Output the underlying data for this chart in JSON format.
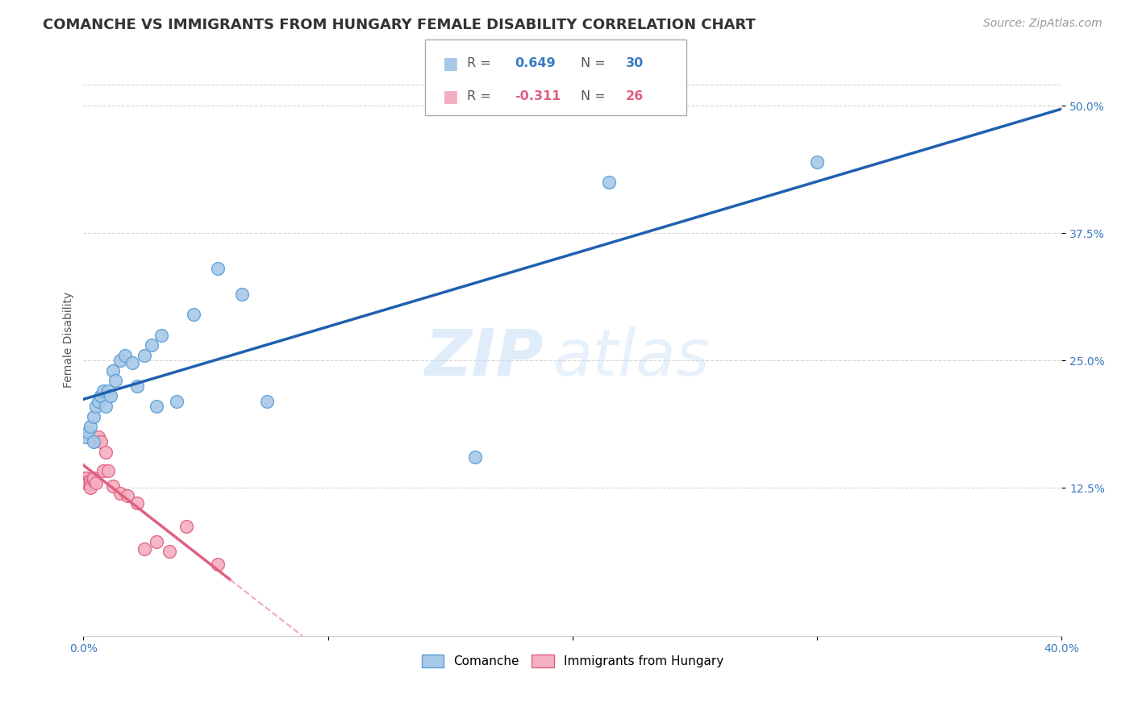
{
  "title": "COMANCHE VS IMMIGRANTS FROM HUNGARY FEMALE DISABILITY CORRELATION CHART",
  "source": "Source: ZipAtlas.com",
  "ylabel": "Female Disability",
  "y_tick_labels": [
    "12.5%",
    "25.0%",
    "37.5%",
    "50.0%"
  ],
  "y_tick_values": [
    0.125,
    0.25,
    0.375,
    0.5
  ],
  "xlim": [
    0.0,
    0.4
  ],
  "ylim": [
    -0.02,
    0.56
  ],
  "comanche_R": 0.649,
  "comanche_N": 30,
  "hungary_R": -0.311,
  "hungary_N": 26,
  "comanche_x": [
    0.001,
    0.002,
    0.003,
    0.004,
    0.004,
    0.005,
    0.006,
    0.007,
    0.008,
    0.009,
    0.01,
    0.011,
    0.012,
    0.013,
    0.015,
    0.017,
    0.02,
    0.022,
    0.025,
    0.028,
    0.03,
    0.032,
    0.038,
    0.045,
    0.055,
    0.065,
    0.075,
    0.16,
    0.215,
    0.3
  ],
  "comanche_y": [
    0.175,
    0.18,
    0.185,
    0.17,
    0.195,
    0.205,
    0.21,
    0.215,
    0.22,
    0.205,
    0.22,
    0.215,
    0.24,
    0.23,
    0.25,
    0.255,
    0.248,
    0.225,
    0.255,
    0.265,
    0.205,
    0.275,
    0.21,
    0.295,
    0.34,
    0.315,
    0.21,
    0.155,
    0.425,
    0.445
  ],
  "hungary_x": [
    0.001,
    0.001,
    0.001,
    0.002,
    0.002,
    0.003,
    0.003,
    0.003,
    0.004,
    0.004,
    0.005,
    0.005,
    0.006,
    0.007,
    0.008,
    0.009,
    0.01,
    0.012,
    0.015,
    0.018,
    0.022,
    0.025,
    0.03,
    0.035,
    0.042,
    0.055
  ],
  "hungary_y": [
    0.135,
    0.135,
    0.13,
    0.13,
    0.13,
    0.132,
    0.128,
    0.125,
    0.132,
    0.135,
    0.13,
    0.172,
    0.175,
    0.17,
    0.142,
    0.16,
    0.142,
    0.127,
    0.12,
    0.117,
    0.11,
    0.065,
    0.072,
    0.063,
    0.087,
    0.05
  ],
  "comanche_color": "#a8c8e8",
  "comanche_edge": "#5a9fd4",
  "hungary_color": "#f4b0c0",
  "hungary_edge": "#e06080",
  "blue_line_color": "#2060b0",
  "pink_line_color": "#e06080",
  "pink_dash_color": "#f0a0b8",
  "background_color": "#ffffff",
  "grid_color": "#cccccc",
  "watermark_zip": "ZIP",
  "watermark_atlas": "atlas",
  "title_fontsize": 13,
  "source_fontsize": 10,
  "axis_label_fontsize": 10,
  "tick_fontsize": 10
}
